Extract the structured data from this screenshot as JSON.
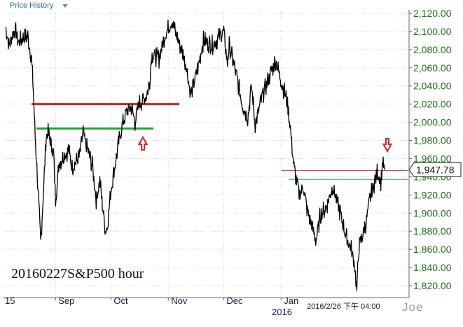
{
  "header": {
    "title": "Price History"
  },
  "annotations": {
    "watermark": "20160227S&P500 hour",
    "timestamp": "2016/2/26 下午 04:00",
    "author": "Joe",
    "last_price": "1,947.78"
  },
  "colors": {
    "price_line": "#000000",
    "resistance": "#dd1f1f",
    "support": "#22a433",
    "axis_text": "#1f6e1f",
    "grid": "#d4d4d4",
    "arrow": "#dd1f1f"
  },
  "chart_data": {
    "type": "line",
    "title": "",
    "xlabel": "",
    "ylabel": "",
    "ylim": [
      1808,
      2130
    ],
    "x_tick_labels": [
      "15",
      "Sep",
      "Oct",
      "Nov",
      "Dec",
      "Jan",
      "2016"
    ],
    "y_ticks": [
      1820,
      1840,
      1860,
      1880,
      1900,
      1920,
      1940,
      1960,
      1980,
      2000,
      2020,
      2040,
      2060,
      2080,
      2100,
      2120
    ],
    "y_tick_labels": [
      "1,820.00",
      "1,840.00",
      "1,860.00",
      "1,880.00",
      "1,900.00",
      "1,920.00",
      "1,940.00",
      "1,960.00",
      "1,980.00",
      "2,000.00",
      "2,020.00",
      "2,040.00",
      "2,060.00",
      "2,080.00",
      "2,100.00",
      "2,120.00"
    ],
    "grid": true,
    "last_value": 1947.78,
    "series": [
      {
        "x": [
          "2015-08-05",
          "2015-08-07",
          "2015-08-10",
          "2015-08-12",
          "2015-08-14",
          "2015-08-17",
          "2015-08-19",
          "2015-08-20",
          "2015-08-21",
          "2015-08-24",
          "2015-08-25",
          "2015-08-26",
          "2015-08-27",
          "2015-08-28",
          "2015-08-31",
          "2015-09-01",
          "2015-09-03",
          "2015-09-08",
          "2015-09-10",
          "2015-09-14",
          "2015-09-16",
          "2015-09-17",
          "2015-09-21",
          "2015-09-23",
          "2015-09-25",
          "2015-09-28",
          "2015-09-29",
          "2015-10-01",
          "2015-10-05",
          "2015-10-07",
          "2015-10-09",
          "2015-10-12",
          "2015-10-14",
          "2015-10-16",
          "2015-10-20",
          "2015-10-22",
          "2015-10-23",
          "2015-10-27",
          "2015-10-30",
          "2015-11-03",
          "2015-11-05",
          "2015-11-09",
          "2015-11-11",
          "2015-11-13",
          "2015-11-17",
          "2015-11-20",
          "2015-11-25",
          "2015-12-01",
          "2015-12-03",
          "2015-12-04",
          "2015-12-08",
          "2015-12-11",
          "2015-12-14",
          "2015-12-16",
          "2015-12-18",
          "2015-12-22",
          "2015-12-29",
          "2016-01-04",
          "2016-01-06",
          "2016-01-08",
          "2016-01-11",
          "2016-01-13",
          "2016-01-15",
          "2016-01-20",
          "2016-01-22",
          "2016-01-26",
          "2016-01-29",
          "2016-02-02",
          "2016-02-05",
          "2016-02-08",
          "2016-02-10",
          "2016-02-11",
          "2016-02-12",
          "2016-02-16",
          "2016-02-18",
          "2016-02-22",
          "2016-02-24",
          "2016-02-25",
          "2016-02-26"
        ],
        "values": [
          2105,
          2085,
          2103,
          2088,
          2092,
          2095,
          2070,
          2035,
          1985,
          1868,
          1905,
          1945,
          1985,
          1988,
          1965,
          1915,
          1955,
          1970,
          1950,
          1962,
          1990,
          1978,
          1952,
          1915,
          1935,
          1880,
          1885,
          1925,
          1975,
          1995,
          2010,
          2017,
          2000,
          2020,
          2028,
          2045,
          2075,
          2070,
          2095,
          2112,
          2098,
          2075,
          2060,
          2030,
          2060,
          2090,
          2085,
          2100,
          2065,
          2085,
          2050,
          2020,
          2005,
          2040,
          1998,
          2030,
          2068,
          2025,
          1995,
          1950,
          1920,
          1930,
          1905,
          1870,
          1895,
          1910,
          1930,
          1900,
          1875,
          1860,
          1840,
          1815,
          1860,
          1890,
          1915,
          1945,
          1935,
          1958,
          1947.78
        ]
      }
    ],
    "reference_lines": [
      {
        "name": "resistance-long",
        "value": 2020,
        "from": "2015-08-25",
        "to": "2015-10-23"
      },
      {
        "name": "support-long",
        "value": 1993,
        "from": "2015-08-26",
        "to": "2015-10-21"
      },
      {
        "name": "resistance-short",
        "value": 1947,
        "from": "2016-01-01",
        "to": "2016-02-26"
      },
      {
        "name": "support-short",
        "value": 1937,
        "from": "2016-01-05",
        "to": "2016-02-26"
      }
    ],
    "markers": [
      {
        "name": "buy-arrow-up",
        "date": "2015-10-14",
        "value": 1985
      },
      {
        "name": "sell-arrow-down",
        "date": "2016-02-26",
        "value": 1968
      }
    ]
  }
}
